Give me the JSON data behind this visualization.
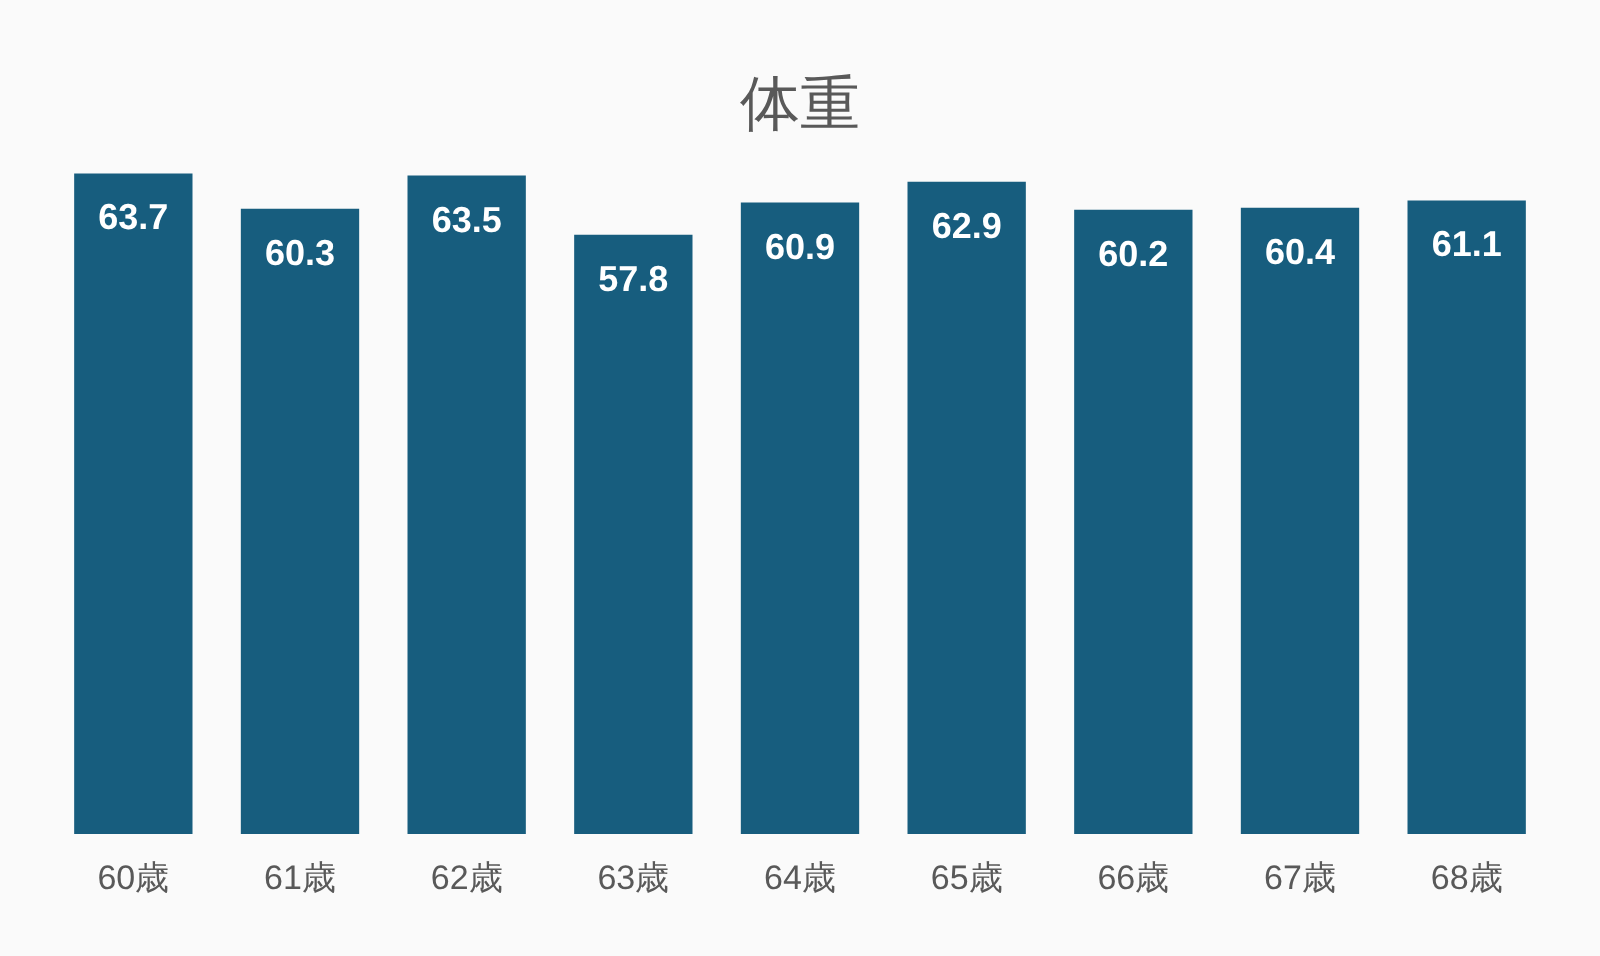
{
  "chart_data": {
    "type": "bar",
    "title": "体重",
    "categories": [
      "60歳",
      "61歳",
      "62歳",
      "63歳",
      "64歳",
      "65歳",
      "66歳",
      "67歳",
      "68歳"
    ],
    "values": [
      63.7,
      60.3,
      63.5,
      57.8,
      60.9,
      62.9,
      60.2,
      60.4,
      61.1
    ],
    "color": "#175d7e",
    "data_labels": true,
    "tick_labels": "x"
  }
}
